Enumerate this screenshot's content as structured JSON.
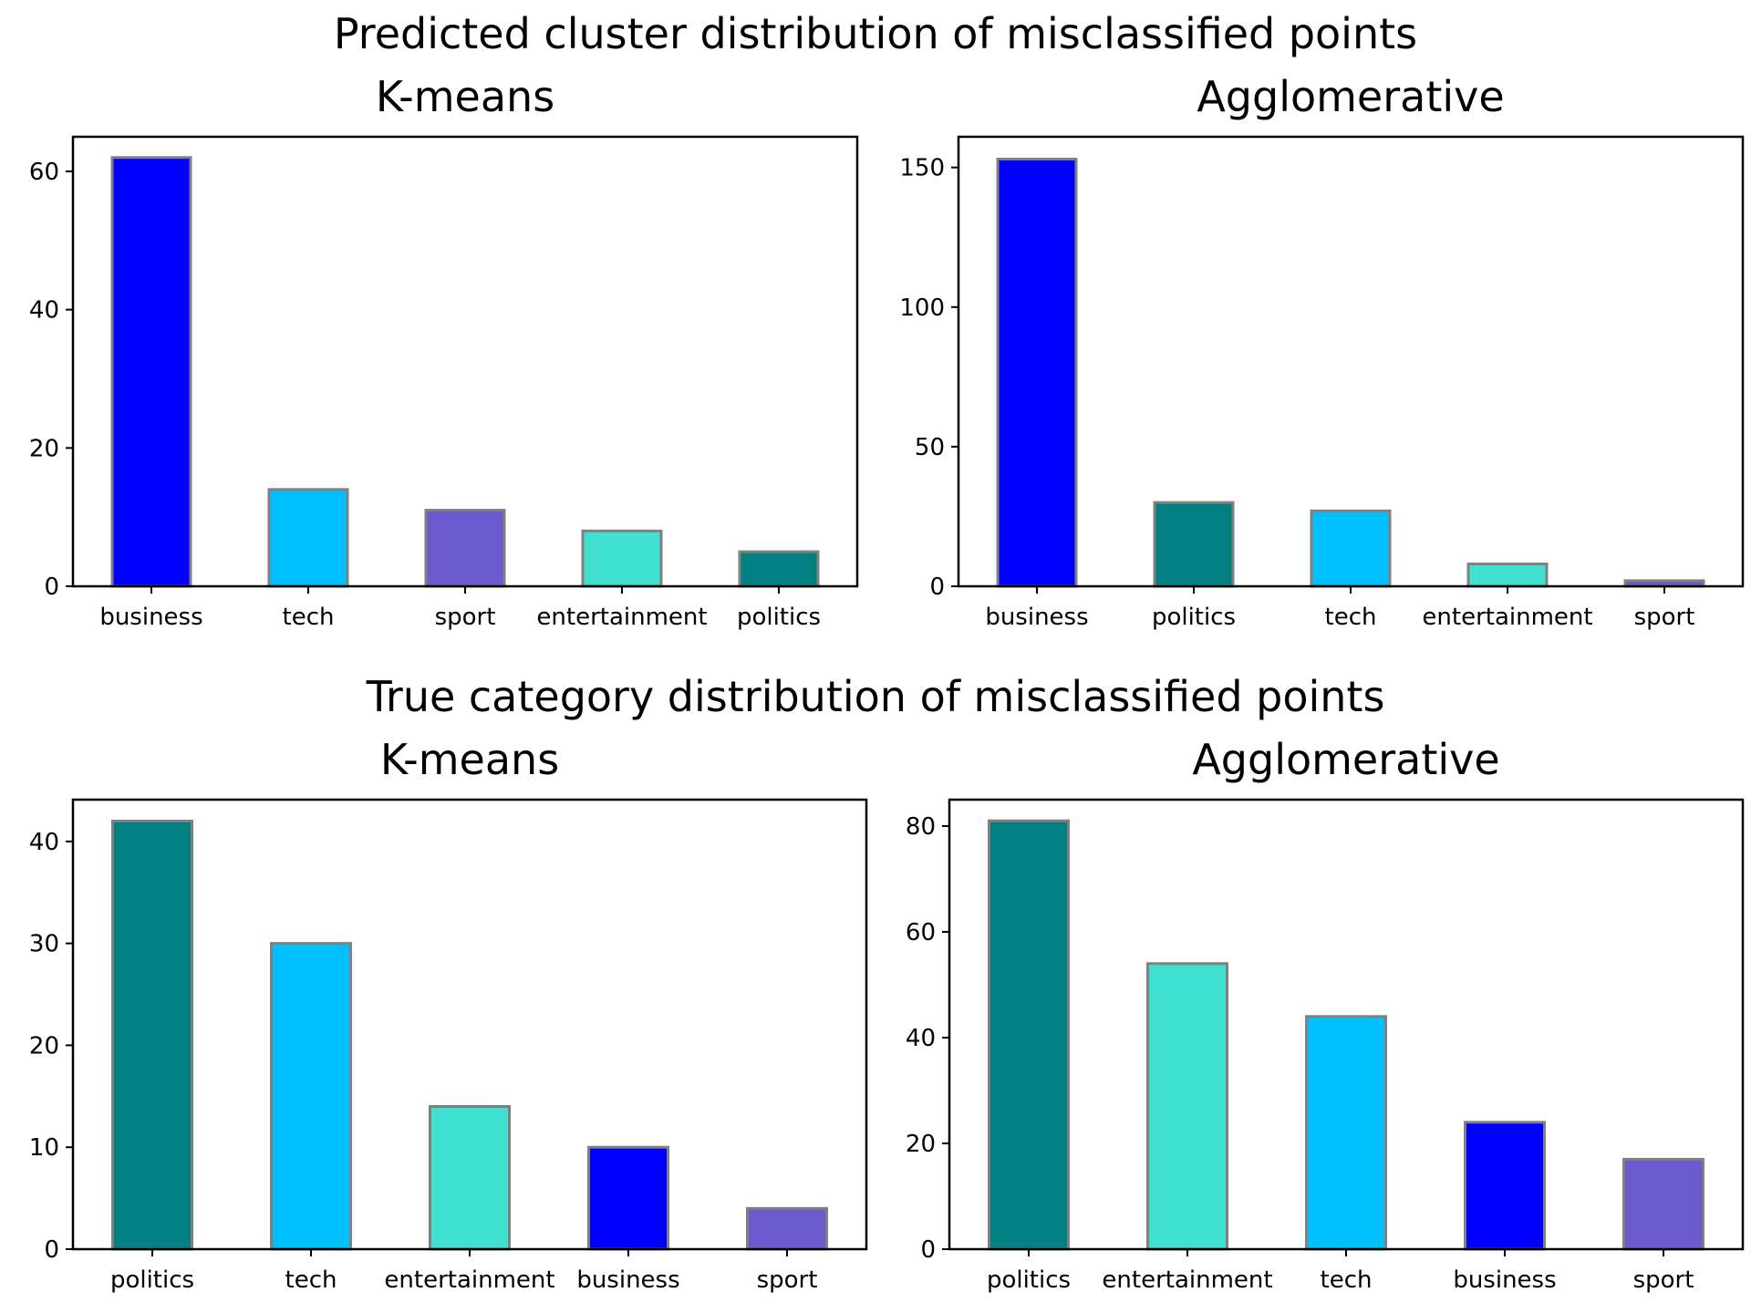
{
  "figure": {
    "suptitle_top": "Predicted cluster distribution of misclassified points",
    "suptitle_bottom": "True category distribution of misclassified points"
  },
  "colors": {
    "business": "#0000ff",
    "tech": "#00bfff",
    "sport": "#6a5acd",
    "entertainment": "#40e0d0",
    "politics": "#008080",
    "bar_edge": "#808080"
  },
  "chart_data": [
    {
      "type": "bar",
      "title": "K-means",
      "categories": [
        "business",
        "tech",
        "sport",
        "entertainment",
        "politics"
      ],
      "values": [
        62,
        14,
        11,
        8,
        5
      ],
      "ylim": [
        0,
        65
      ],
      "yticks": [
        0,
        20,
        40,
        60
      ],
      "xlabel": "",
      "ylabel": "",
      "grid": false
    },
    {
      "type": "bar",
      "title": "Agglomerative",
      "categories": [
        "business",
        "politics",
        "tech",
        "entertainment",
        "sport"
      ],
      "values": [
        153,
        30,
        27,
        8,
        2
      ],
      "ylim": [
        0,
        161
      ],
      "yticks": [
        0,
        50,
        100,
        150
      ],
      "xlabel": "",
      "ylabel": "",
      "grid": false
    },
    {
      "type": "bar",
      "title": "K-means",
      "categories": [
        "politics",
        "tech",
        "entertainment",
        "business",
        "sport"
      ],
      "values": [
        42,
        30,
        14,
        10,
        4
      ],
      "ylim": [
        0,
        44.1
      ],
      "yticks": [
        0,
        10,
        20,
        30,
        40
      ],
      "xlabel": "",
      "ylabel": "",
      "grid": false
    },
    {
      "type": "bar",
      "title": "Agglomerative",
      "categories": [
        "politics",
        "entertainment",
        "tech",
        "business",
        "sport"
      ],
      "values": [
        81,
        54,
        44,
        24,
        17
      ],
      "ylim": [
        0,
        85
      ],
      "yticks": [
        0,
        20,
        40,
        60,
        80
      ],
      "xlabel": "",
      "ylabel": "",
      "grid": false
    }
  ]
}
